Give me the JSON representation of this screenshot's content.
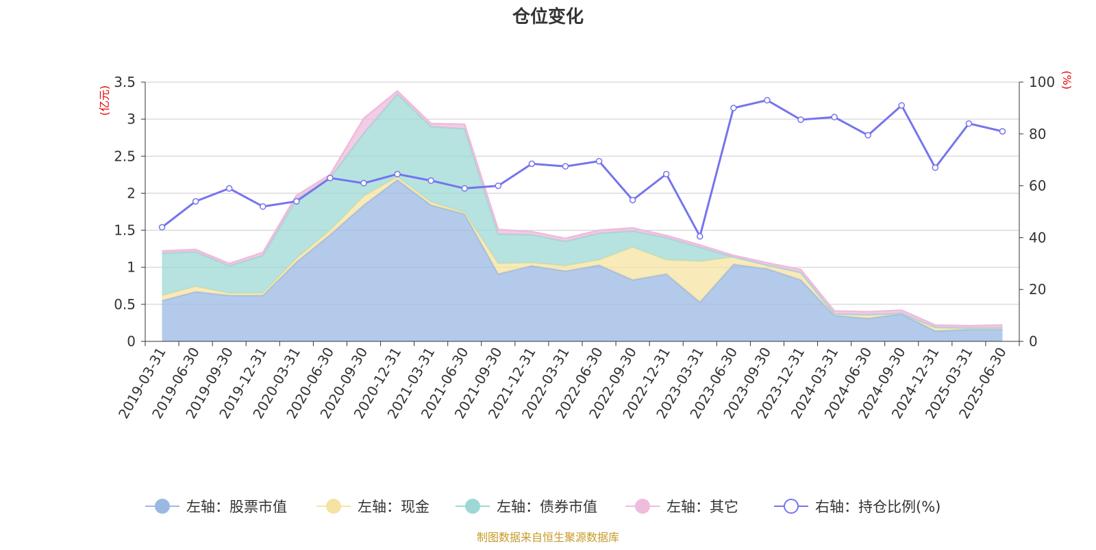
{
  "chart_data": {
    "type": "area",
    "title": "仓位变化",
    "source_note": "制图数据来自恒生聚源数据库",
    "left_axis": {
      "unit": "(亿元)",
      "ylim": [
        0,
        3.5
      ],
      "ticks": [
        "0",
        "0.5",
        "1",
        "1.5",
        "2",
        "2.5",
        "3",
        "3.5"
      ]
    },
    "right_axis": {
      "unit": "(%)",
      "ylim": [
        0,
        100
      ],
      "ticks": [
        "0",
        "20",
        "40",
        "60",
        "80",
        "100"
      ]
    },
    "grid": true,
    "legend_position": "bottom",
    "categories": [
      "2019-03-31",
      "2019-06-30",
      "2019-09-30",
      "2019-12-31",
      "2020-03-31",
      "2020-06-30",
      "2020-09-30",
      "2020-12-31",
      "2021-03-31",
      "2021-06-30",
      "2021-09-30",
      "2021-12-31",
      "2022-03-31",
      "2022-06-30",
      "2022-09-30",
      "2022-12-31",
      "2023-03-31",
      "2023-06-30",
      "2023-09-30",
      "2023-12-31",
      "2024-03-31",
      "2024-06-30",
      "2024-09-30",
      "2024-12-31",
      "2025-03-31",
      "2025-06-30"
    ],
    "series": [
      {
        "name": "左轴：股票市值",
        "axis": "left",
        "type": "area",
        "color": "#9bb8e3",
        "values": [
          0.55,
          0.67,
          0.62,
          0.62,
          1.07,
          1.44,
          1.84,
          2.18,
          1.84,
          1.72,
          0.91,
          1.02,
          0.95,
          1.03,
          0.83,
          0.91,
          0.53,
          1.04,
          0.98,
          0.83,
          0.35,
          0.31,
          0.37,
          0.14,
          0.16,
          0.16
        ]
      },
      {
        "name": "左轴：现金",
        "axis": "left",
        "type": "area",
        "color": "#f6e3a1",
        "values": [
          0.07,
          0.07,
          0.03,
          0.03,
          0.05,
          0.06,
          0.12,
          0.04,
          0.04,
          0.02,
          0.14,
          0.04,
          0.07,
          0.07,
          0.44,
          0.19,
          0.55,
          0.1,
          0.05,
          0.1,
          0.02,
          0.05,
          0.01,
          0.05,
          0.02,
          0.02
        ]
      },
      {
        "name": "左轴：债券市值",
        "axis": "left",
        "type": "area",
        "color": "#9ed8d6",
        "values": [
          0.57,
          0.47,
          0.37,
          0.51,
          0.8,
          0.71,
          0.85,
          1.12,
          1.02,
          1.13,
          0.4,
          0.38,
          0.33,
          0.36,
          0.22,
          0.3,
          0.19,
          0,
          0,
          0,
          0,
          0,
          0,
          0,
          0,
          0
        ]
      },
      {
        "name": "左轴：其它",
        "axis": "left",
        "type": "area",
        "color": "#eebcdc",
        "values": [
          0.03,
          0.03,
          0.03,
          0.04,
          0.05,
          0.04,
          0.2,
          0.04,
          0.04,
          0.06,
          0.06,
          0.04,
          0.04,
          0.04,
          0.04,
          0.03,
          0.03,
          0.02,
          0.03,
          0.04,
          0.04,
          0.04,
          0.04,
          0.03,
          0.03,
          0.04
        ]
      },
      {
        "name": "右轴：持仓比例(%)",
        "axis": "right",
        "type": "line",
        "color": "#7474ee",
        "values": [
          44,
          54,
          59,
          52,
          54,
          63,
          61,
          64.5,
          62,
          59,
          60,
          68.5,
          67.5,
          69.5,
          54.5,
          64.5,
          40.5,
          90,
          93,
          85.5,
          86.5,
          79.5,
          91,
          67,
          84,
          81
        ]
      }
    ]
  }
}
